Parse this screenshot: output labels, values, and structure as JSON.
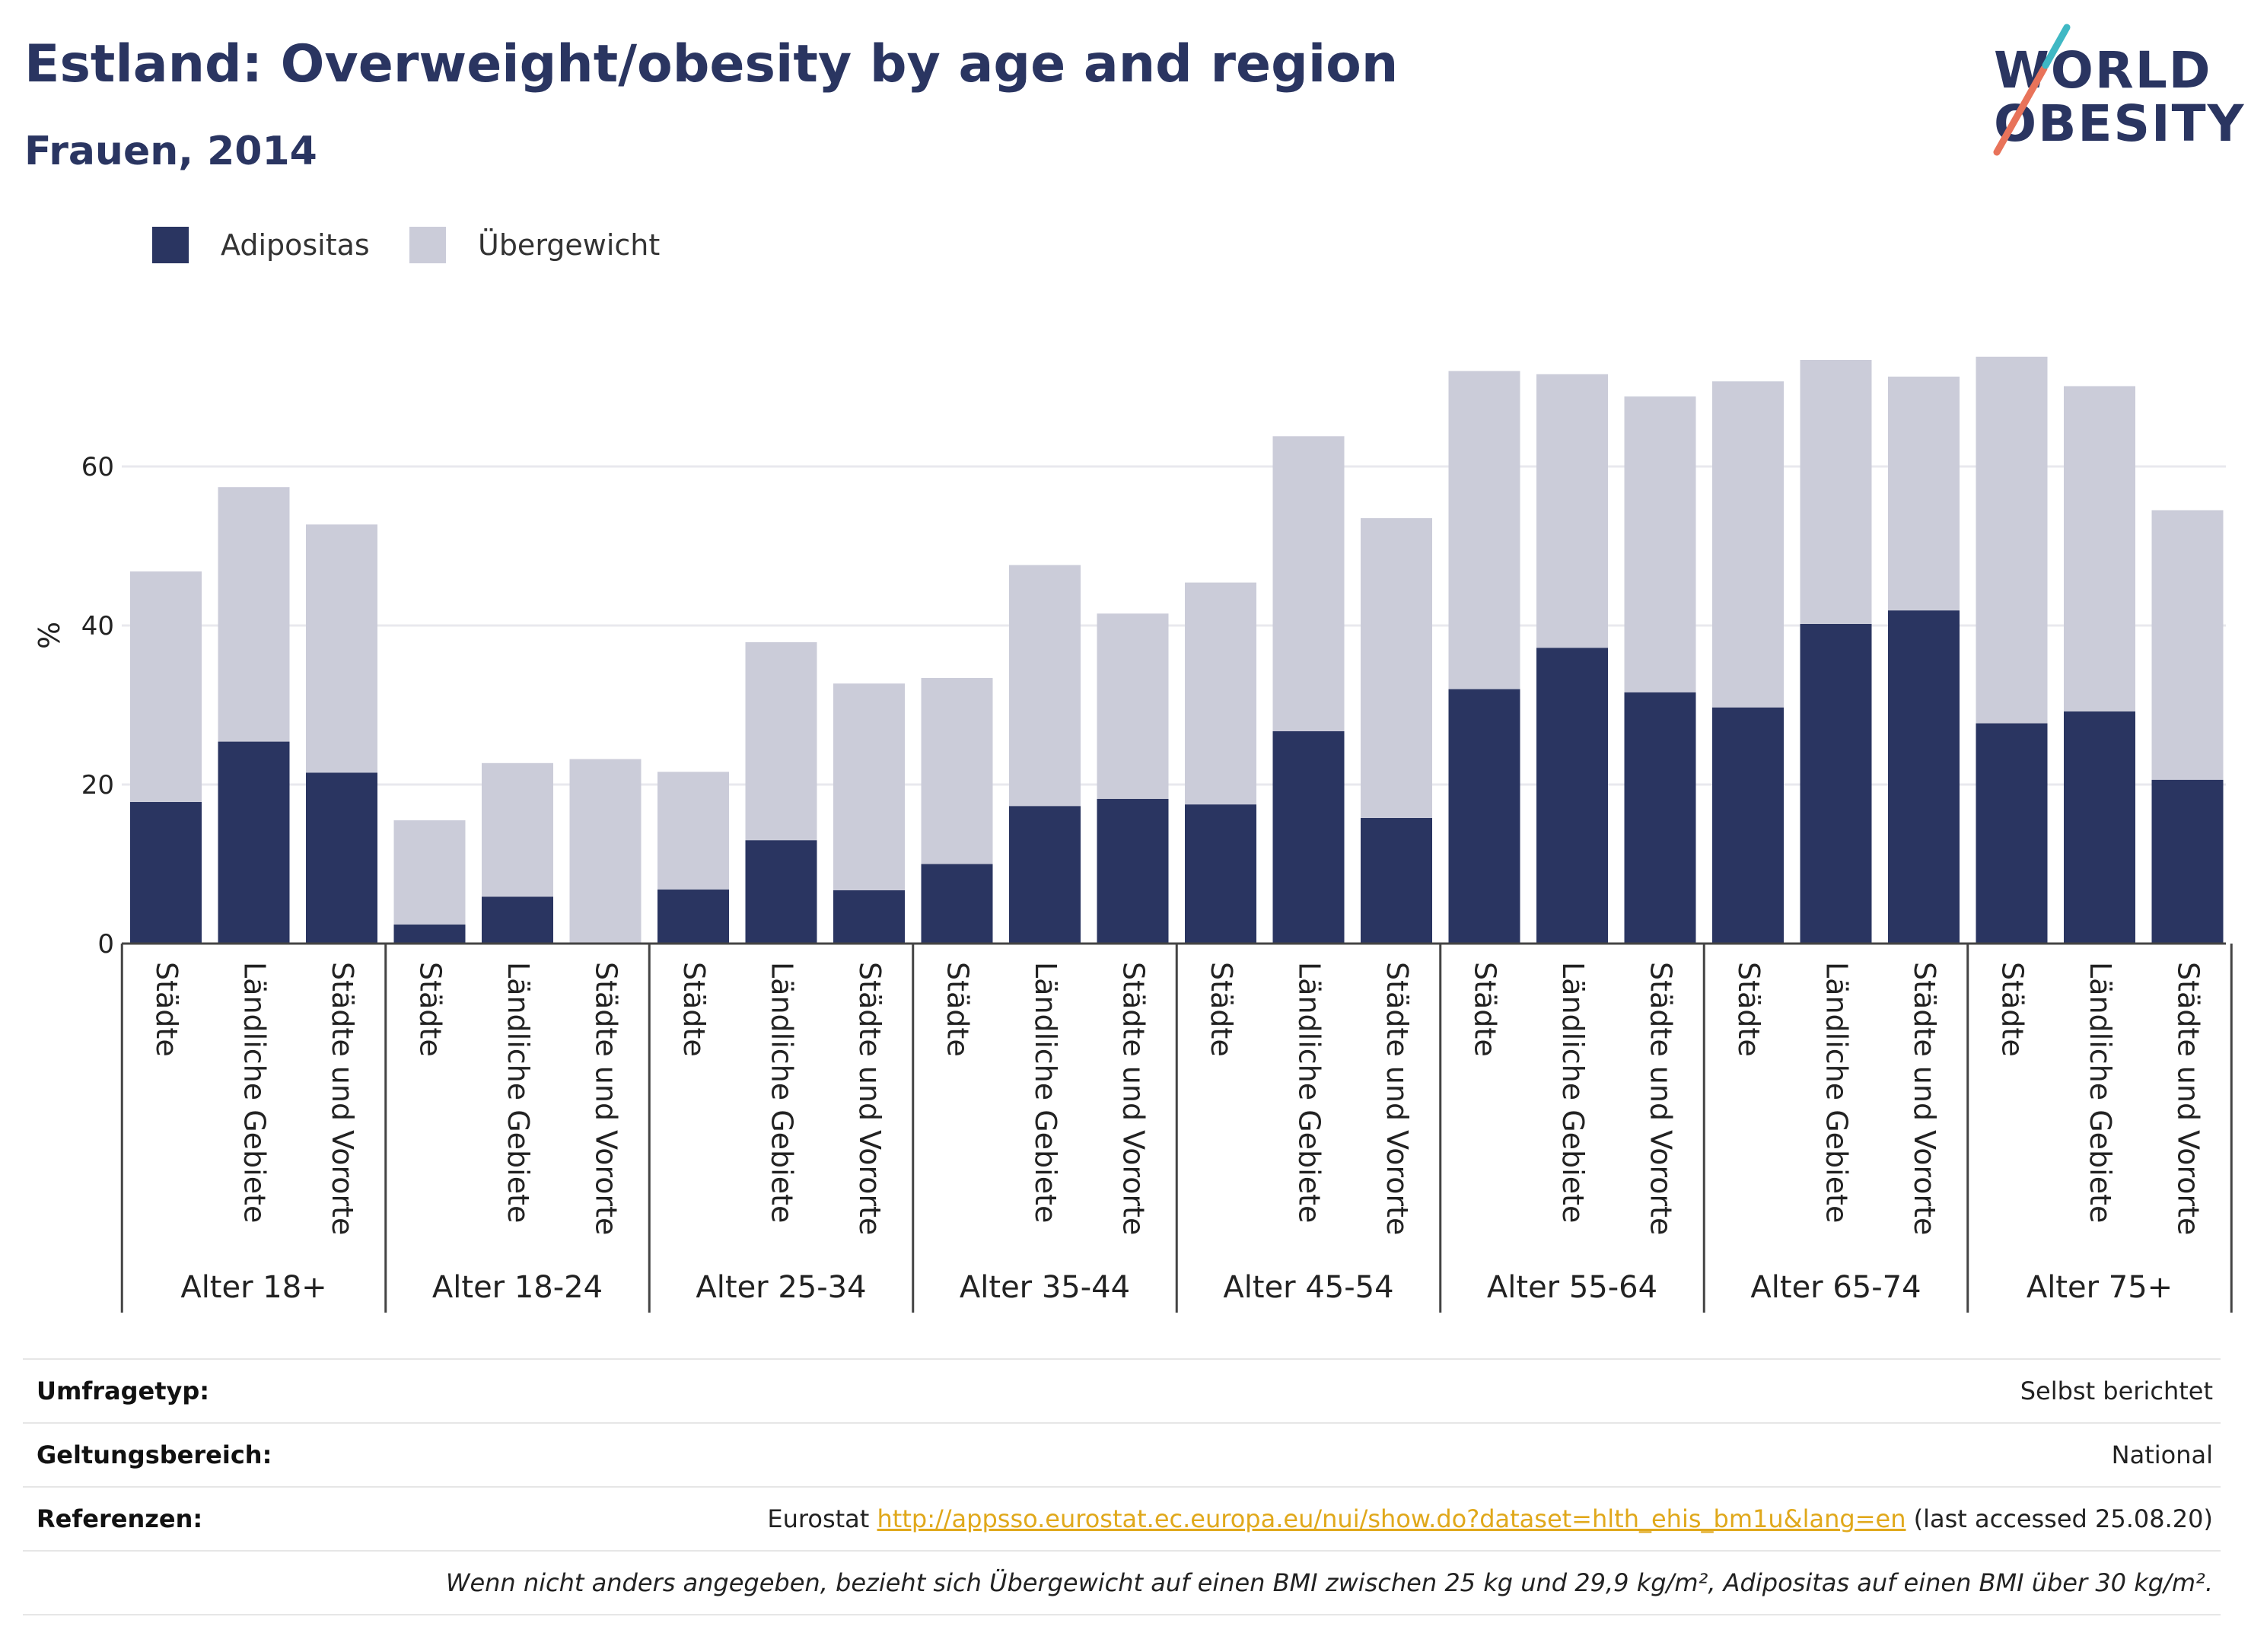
{
  "header": {
    "title": "Estland: Overweight/obesity by age and region",
    "subtitle": "Frauen, 2014"
  },
  "logo": {
    "line1": "WORLD",
    "line2": "OBESITY",
    "colors": {
      "text": "#2a3561",
      "accent_red": "#e8735a",
      "accent_teal": "#3fb8c4"
    }
  },
  "legend": {
    "items": [
      {
        "label": "Adipositas",
        "color": "#2a3561"
      },
      {
        "label": "Übergewicht",
        "color": "#cbccd9"
      }
    ]
  },
  "chart_data": {
    "type": "bar",
    "stacked": true,
    "ylabel": "%",
    "ylim": [
      0,
      80
    ],
    "yticks": [
      0,
      20,
      40,
      60
    ],
    "grid": true,
    "legend_position": "top-left",
    "groups": [
      {
        "label": "Alter 18+",
        "categories": [
          "Städte",
          "Ländliche Gebiete",
          "Städte und Vororte"
        ]
      },
      {
        "label": "Alter 18-24",
        "categories": [
          "Städte",
          "Ländliche Gebiete",
          "Städte und Vororte"
        ]
      },
      {
        "label": "Alter 25-34",
        "categories": [
          "Städte",
          "Ländliche Gebiete",
          "Städte und Vororte"
        ]
      },
      {
        "label": "Alter 35-44",
        "categories": [
          "Städte",
          "Ländliche Gebiete",
          "Städte und Vororte"
        ]
      },
      {
        "label": "Alter 45-54",
        "categories": [
          "Städte",
          "Ländliche Gebiete",
          "Städte und Vororte"
        ]
      },
      {
        "label": "Alter 55-64",
        "categories": [
          "Städte",
          "Ländliche Gebiete",
          "Städte und Vororte"
        ]
      },
      {
        "label": "Alter 65-74",
        "categories": [
          "Städte",
          "Ländliche Gebiete",
          "Städte und Vororte"
        ]
      },
      {
        "label": "Alter 75+",
        "categories": [
          "Städte",
          "Ländliche Gebiete",
          "Städte und Vororte"
        ]
      }
    ],
    "series": [
      {
        "name": "Adipositas",
        "color": "#2a3561",
        "values": [
          17.8,
          25.4,
          21.5,
          2.4,
          5.9,
          0,
          6.8,
          13.0,
          6.7,
          10.0,
          17.3,
          18.2,
          17.5,
          26.7,
          15.8,
          32.0,
          37.2,
          31.6,
          29.7,
          40.2,
          41.9,
          27.7,
          29.2,
          20.6
        ]
      },
      {
        "name": "Übergewicht",
        "color": "#cbccd9",
        "values": [
          29.0,
          32.0,
          31.2,
          13.1,
          16.8,
          23.2,
          14.8,
          24.9,
          26.0,
          23.4,
          30.3,
          23.3,
          27.9,
          37.1,
          37.7,
          40.0,
          34.4,
          37.2,
          41.0,
          33.2,
          29.4,
          46.1,
          40.9,
          33.9
        ]
      }
    ]
  },
  "meta": {
    "rows": [
      {
        "key": "Umfragetyp:",
        "value": "Selbst berichtet"
      },
      {
        "key": "Geltungsbereich:",
        "value": "National"
      }
    ],
    "references": {
      "key": "Referenzen:",
      "prefix": "Eurostat",
      "link": "http://appsso.eurostat.ec.europa.eu/nui/show.do?dataset=hlth_ehis_bm1u&lang=en",
      "suffix": "(last accessed 25.08.20)"
    },
    "note": "Wenn nicht anders angegeben, bezieht sich Übergewicht auf einen BMI zwischen 25 kg und 29,9 kg/m², Adipositas auf einen BMI über 30 kg/m²."
  }
}
